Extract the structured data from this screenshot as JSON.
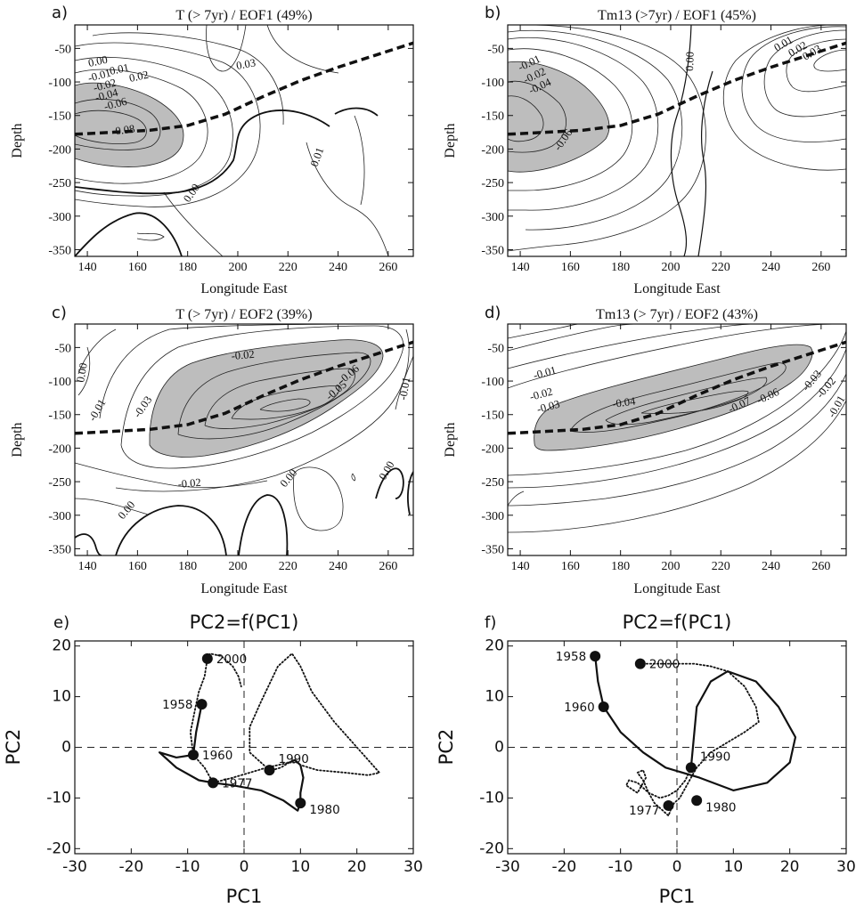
{
  "chart_data": [
    {
      "panel": "a)",
      "type": "contour",
      "title": "T  (> 7yr) / EOF1 (49%)",
      "xlabel": "Longitude East",
      "ylabel": "Depth",
      "xlim": [
        135,
        270
      ],
      "ylim": [
        -360,
        -15
      ],
      "xticks": [
        140,
        160,
        180,
        200,
        220,
        240,
        260
      ],
      "yticks": [
        -50,
        -100,
        -150,
        -200,
        -250,
        -300,
        -350
      ],
      "contour_labels": [
        "0.00",
        "0.01",
        "0.02",
        "0.03",
        "-0.01",
        "-0.02",
        "-0.04",
        "-0.06",
        "-0.08",
        "0.01",
        "0.00"
      ],
      "thermocline": {
        "x": [
          135,
          150,
          165,
          180,
          195,
          210,
          225,
          240,
          255,
          270
        ],
        "y": [
          -178,
          -175,
          -172,
          -165,
          -148,
          -122,
          -98,
          -78,
          -60,
          -42
        ]
      }
    },
    {
      "panel": "b)",
      "type": "contour",
      "title": "Tm13 (>7yr) / EOF1 (45%)",
      "xlabel": "Longitude East",
      "ylabel": "Depth",
      "xlim": [
        135,
        270
      ],
      "ylim": [
        -360,
        -15
      ],
      "xticks": [
        140,
        160,
        180,
        200,
        220,
        240,
        260
      ],
      "yticks": [
        -50,
        -100,
        -150,
        -200,
        -250,
        -300,
        -350
      ],
      "contour_labels": [
        "-0.01",
        "-0.02",
        "-0.04",
        "-0.06",
        "0.00",
        "0.01",
        "0.02",
        "0.03"
      ],
      "thermocline": {
        "x": [
          135,
          150,
          165,
          180,
          195,
          210,
          225,
          240,
          255,
          270
        ],
        "y": [
          -178,
          -175,
          -172,
          -165,
          -148,
          -122,
          -98,
          -78,
          -60,
          -42
        ]
      }
    },
    {
      "panel": "c)",
      "type": "contour",
      "title": "T (> 7yr) / EOF2 (39%)",
      "xlabel": "Longitude East",
      "ylabel": "Depth",
      "xlim": [
        135,
        270
      ],
      "ylim": [
        -360,
        -15
      ],
      "xticks": [
        140,
        160,
        180,
        200,
        220,
        240,
        260
      ],
      "yticks": [
        -50,
        -100,
        -150,
        -200,
        -250,
        -300,
        -350
      ],
      "contour_labels": [
        "0.00",
        "-0.01",
        "-0.02",
        "-0.03",
        "-0.02",
        "-0.05",
        "-0.06",
        "0.00",
        "0.00",
        "0.00",
        "-0.01"
      ],
      "thermocline": {
        "x": [
          135,
          150,
          165,
          180,
          195,
          210,
          225,
          240,
          255,
          270
        ],
        "y": [
          -178,
          -175,
          -172,
          -165,
          -148,
          -122,
          -98,
          -78,
          -60,
          -42
        ]
      }
    },
    {
      "panel": "d)",
      "type": "contour",
      "title": "Tm13 (> 7yr) / EOF2 (43%)",
      "xlabel": "Longitude East",
      "ylabel": "Depth",
      "xlim": [
        135,
        270
      ],
      "ylim": [
        -360,
        -15
      ],
      "xticks": [
        140,
        160,
        180,
        200,
        220,
        240,
        260
      ],
      "yticks": [
        -50,
        -100,
        -150,
        -200,
        -250,
        -300,
        -350
      ],
      "contour_labels": [
        "-0.01",
        "-0.02",
        "-0.03",
        "-0.04",
        "-0.07",
        "-0.06",
        "-0.03",
        "-0.02",
        "-0.01"
      ],
      "thermocline": {
        "x": [
          135,
          150,
          165,
          180,
          195,
          210,
          225,
          240,
          255,
          270
        ],
        "y": [
          -178,
          -175,
          -172,
          -165,
          -148,
          -122,
          -98,
          -78,
          -60,
          -42
        ]
      }
    },
    {
      "panel": "e)",
      "type": "line",
      "title": "PC2=f(PC1)",
      "xlabel": "PC1",
      "ylabel": "PC2",
      "xlim": [
        -30,
        30
      ],
      "ylim": [
        -21,
        21
      ],
      "xticks": [
        -30,
        -20,
        -10,
        0,
        10,
        20,
        30
      ],
      "yticks": [
        -20,
        -10,
        0,
        10,
        20
      ],
      "points": [
        {
          "label": "1958",
          "x": -7.5,
          "y": 8.5
        },
        {
          "label": "1960",
          "x": -9,
          "y": -1.5
        },
        {
          "label": "1977",
          "x": -5.5,
          "y": -7
        },
        {
          "label": "2000",
          "x": -6.5,
          "y": 17.5
        },
        {
          "label": "1990",
          "x": 4.5,
          "y": -4.5
        },
        {
          "label": "1980",
          "x": 10,
          "y": -11
        }
      ],
      "trajectory_x": [
        -7.5,
        -8.5,
        -9,
        -12,
        -15,
        -12,
        -8,
        -5.5,
        -2,
        3,
        7,
        9.5,
        10,
        10,
        10.5,
        10,
        9,
        8,
        6.5,
        5,
        4.5,
        3,
        1,
        1,
        3,
        6,
        8.5,
        10,
        12,
        16,
        20,
        24,
        22,
        18,
        13,
        10,
        9.5,
        8,
        4,
        1,
        -2,
        -5.5,
        -7,
        -9,
        -9.5,
        -8.5,
        -8,
        -7,
        -6.5,
        -6,
        -4,
        -2,
        -1,
        -0.5
      ],
      "trajectory_y": [
        8.5,
        3,
        -1.5,
        -2,
        -1,
        -4,
        -6.5,
        -7,
        -7.5,
        -8.5,
        -10.5,
        -12.5,
        -11,
        -9,
        -6,
        -3.5,
        -2.5,
        -3,
        -4,
        -4.5,
        -4.5,
        -3,
        -1,
        4,
        9,
        16,
        18.5,
        16,
        11,
        5,
        0,
        -5,
        -5.5,
        -5,
        -4.5,
        -3.5,
        -3,
        -3,
        -4,
        -5,
        -6,
        -7,
        -4,
        -1.5,
        3,
        8.5,
        11,
        14,
        17.5,
        18.5,
        18,
        16,
        14,
        12
      ],
      "dashed_axes": true
    },
    {
      "panel": "f)",
      "type": "line",
      "title": "PC2=f(PC1)",
      "xlabel": "PC1",
      "ylabel": "PC2",
      "xlim": [
        -30,
        30
      ],
      "ylim": [
        -21,
        21
      ],
      "xticks": [
        -30,
        -20,
        -10,
        0,
        10,
        20,
        30
      ],
      "yticks": [
        -20,
        -10,
        0,
        10,
        20
      ],
      "points": [
        {
          "label": "1958",
          "x": -14.5,
          "y": 18
        },
        {
          "label": "2000",
          "x": -6.5,
          "y": 16.5
        },
        {
          "label": "1960",
          "x": -13,
          "y": 8
        },
        {
          "label": "1990",
          "x": 2.5,
          "y": -4
        },
        {
          "label": "1977",
          "x": -1.5,
          "y": -11.5
        },
        {
          "label": "1980",
          "x": 3.5,
          "y": -10.5
        }
      ],
      "trajectory_x": [
        -14.5,
        -14,
        -13,
        -10,
        -6,
        -2,
        4,
        10,
        16,
        20,
        21,
        18,
        14,
        9,
        6,
        3.5,
        3,
        2.5,
        1.5,
        0,
        -1.5,
        -3,
        -5,
        -7,
        -8.5,
        -9,
        -7,
        -5.5,
        -6,
        -7,
        -6,
        -5,
        -4,
        -3.5,
        -2.5,
        -1.5,
        -1,
        -0.5,
        0.5,
        1.5,
        2.5,
        3.5,
        6,
        9,
        12,
        14.5,
        14,
        12,
        9,
        6,
        3,
        0,
        -2.5,
        -4.5,
        -6.5
      ],
      "trajectory_y": [
        18,
        13,
        8,
        3,
        -1,
        -4,
        -6,
        -8.5,
        -7,
        -3,
        2,
        8,
        13,
        15,
        13,
        8,
        2,
        -4,
        -6.5,
        -8.5,
        -9.5,
        -10,
        -9,
        -7,
        -6.5,
        -7.5,
        -9,
        -6,
        -4.5,
        -5,
        -6.5,
        -9,
        -11,
        -11.5,
        -12.5,
        -13.5,
        -12,
        -11,
        -10,
        -8,
        -6,
        -4,
        -1,
        1,
        3,
        5,
        8,
        12,
        15,
        16,
        16.5,
        16.5,
        16.5,
        16.5,
        16.5
      ],
      "dashed_axes": true
    }
  ]
}
